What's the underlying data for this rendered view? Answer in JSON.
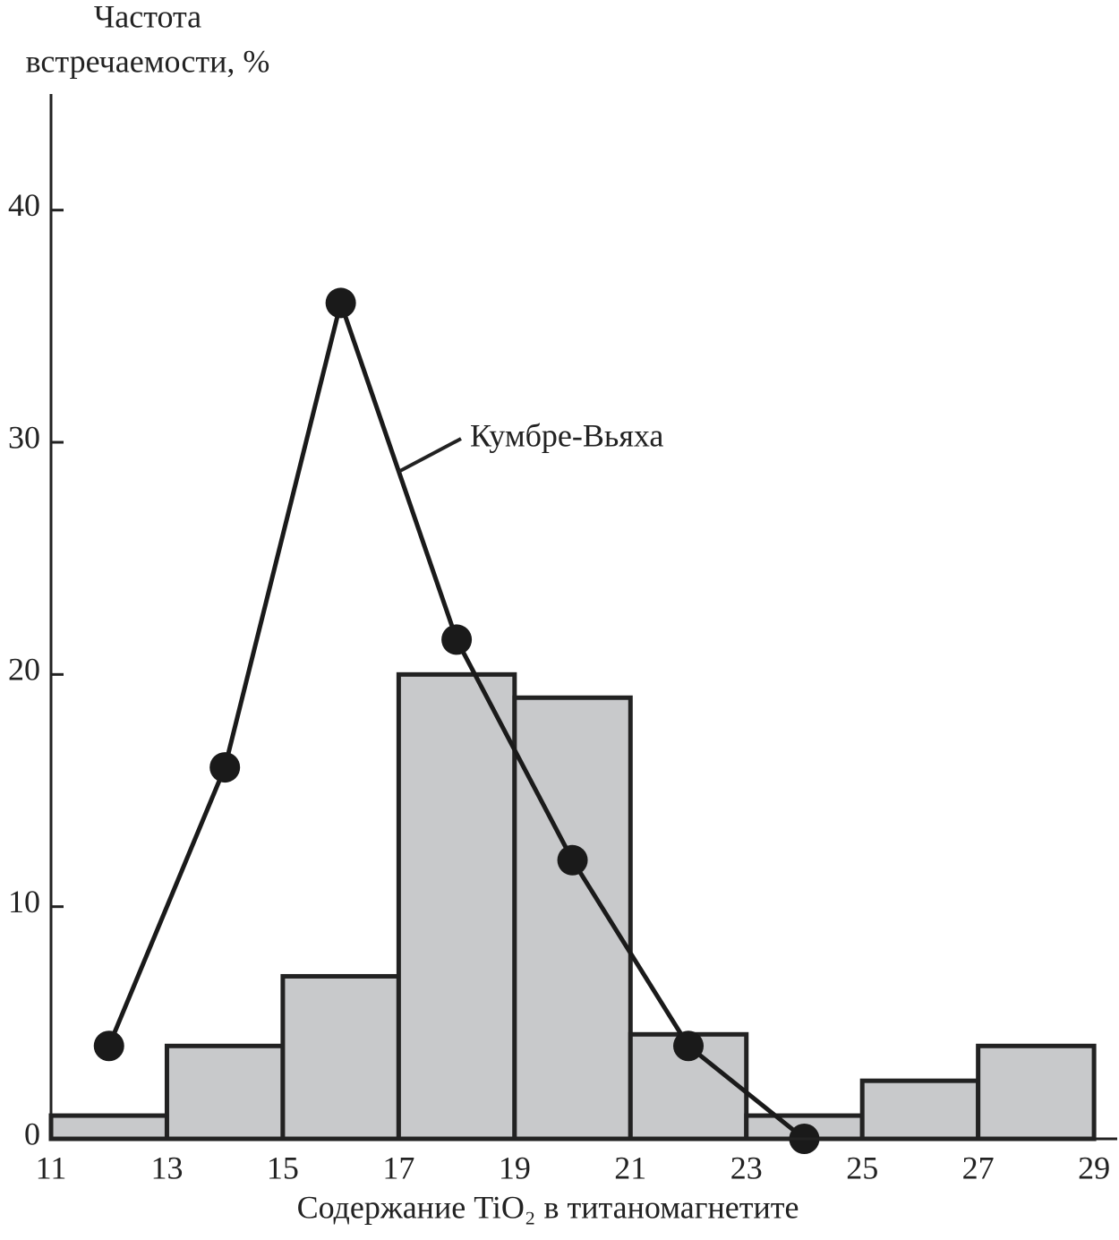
{
  "chart_data": {
    "type": "histogram",
    "ylabel": [
      "Частота",
      "встречаемости, %"
    ],
    "xlabel": "Содержание TiO₂ в титаномагнетите",
    "bins": [
      11,
      13,
      15,
      17,
      19,
      21,
      23,
      25,
      27,
      29
    ],
    "values": [
      1,
      4,
      7,
      20,
      19,
      4.5,
      1,
      2.5,
      4
    ],
    "color": "#c8c9cb",
    "xlim": [
      11,
      29.4
    ],
    "ylim": [
      0,
      45
    ],
    "xticks": [
      11,
      13,
      15,
      17,
      19,
      21,
      23,
      25,
      27,
      29
    ],
    "yticks": [
      0,
      10,
      20,
      30,
      40
    ],
    "overlay": {
      "type": "line",
      "name": "Кумбре-Вьяха",
      "color": "#1a1a1a",
      "x": [
        12,
        14,
        16,
        18,
        20,
        22,
        24
      ],
      "values": [
        4,
        16,
        36,
        21.5,
        12,
        4,
        0
      ]
    }
  }
}
